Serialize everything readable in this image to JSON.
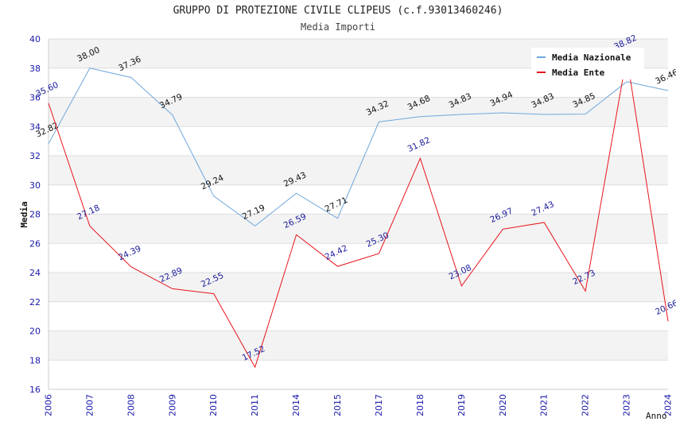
{
  "chart_data": {
    "type": "line",
    "title": "GRUPPO DI PROTEZIONE CIVILE CLIPEUS (c.f.93013460246)",
    "subtitle": "Media Importi",
    "xlabel": "Anno",
    "ylabel": "Media",
    "categories": [
      "2006",
      "2007",
      "2008",
      "2009",
      "2010",
      "2011",
      "2014",
      "2015",
      "2017",
      "2018",
      "2019",
      "2020",
      "2021",
      "2022",
      "2023",
      "2024"
    ],
    "ylim": [
      16,
      40
    ],
    "yticks": [
      16,
      18,
      20,
      22,
      24,
      26,
      28,
      30,
      32,
      34,
      36,
      38,
      40
    ],
    "grid": true,
    "legend_position": "top-right",
    "series": [
      {
        "name": "Media Nazionale",
        "color": "#6fa8dc",
        "values": [
          32.82,
          38.0,
          37.36,
          34.79,
          29.24,
          27.19,
          29.43,
          27.71,
          34.32,
          34.68,
          34.83,
          34.94,
          34.83,
          34.85,
          37.07,
          36.46
        ],
        "labels": [
          "32.82",
          "38.00",
          "37.36",
          "34.79",
          "29.24",
          "27.19",
          "29.43",
          "27.71",
          "34.32",
          "34.68",
          "34.83",
          "34.94",
          "34.83",
          "34.85",
          "",
          "36.46"
        ]
      },
      {
        "name": "Media Ente",
        "color": "#e8141b",
        "values": [
          35.6,
          27.18,
          24.39,
          22.89,
          22.55,
          17.52,
          26.59,
          24.42,
          25.3,
          31.82,
          23.08,
          26.97,
          27.43,
          22.73,
          38.82,
          20.66
        ],
        "labels": [
          "35.60",
          "27.18",
          "24.39",
          "22.89",
          "22.55",
          "17.52",
          "26.59",
          "24.42",
          "25.30",
          "31.82",
          "23.08",
          "26.97",
          "27.43",
          "22.73",
          "38.82",
          "20.66"
        ]
      }
    ]
  }
}
